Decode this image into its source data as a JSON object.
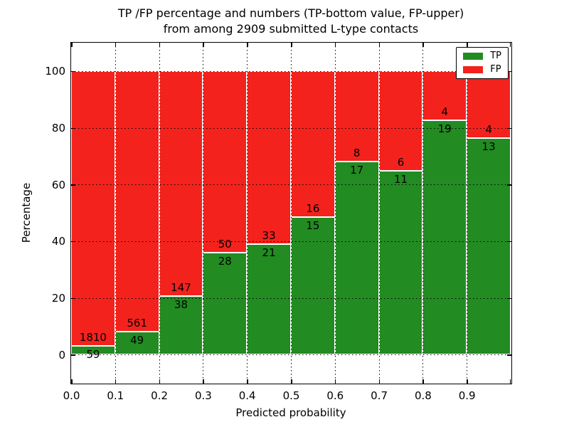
{
  "title": {
    "line1": "TP /FP percentage and numbers (TP-bottom value, FP-upper)",
    "line2": "from among 2909 submitted L-type contacts"
  },
  "chart_data": {
    "type": "bar",
    "stacked": true,
    "normalized": "each bin scaled to 100%",
    "title": "TP /FP percentage and numbers (TP-bottom value, FP-upper) from among 2909 submitted L-type contacts",
    "xlabel": "Predicted probability",
    "ylabel": "Percentage",
    "total_contacts": 2909,
    "bins": [
      "0.0-0.1",
      "0.1-0.2",
      "0.2-0.3",
      "0.3-0.4",
      "0.4-0.5",
      "0.5-0.6",
      "0.6-0.7",
      "0.7-0.8",
      "0.8-0.9",
      "0.9-1.0"
    ],
    "series": [
      {
        "name": "TP",
        "color": "#228b22",
        "values": [
          59,
          49,
          38,
          28,
          21,
          15,
          17,
          11,
          19,
          13
        ]
      },
      {
        "name": "FP",
        "color": "#f3221d",
        "values": [
          1810,
          561,
          147,
          50,
          33,
          16,
          8,
          6,
          4,
          4
        ]
      }
    ],
    "tp_percent_of_bin": [
      3.16,
      8.03,
      20.54,
      35.9,
      38.89,
      48.39,
      68.0,
      64.71,
      82.61,
      76.47
    ],
    "xlim": [
      0.0,
      1.0
    ],
    "ylim": [
      -10,
      110
    ],
    "xticks": [
      "0.0",
      "0.1",
      "0.2",
      "0.3",
      "0.4",
      "0.5",
      "0.6",
      "0.7",
      "0.8",
      "0.9"
    ],
    "yticks": [
      0,
      20,
      40,
      60,
      80,
      100
    ],
    "grid": "dotted",
    "legend": {
      "position": "upper right",
      "entries": [
        "TP",
        "FP"
      ]
    }
  }
}
